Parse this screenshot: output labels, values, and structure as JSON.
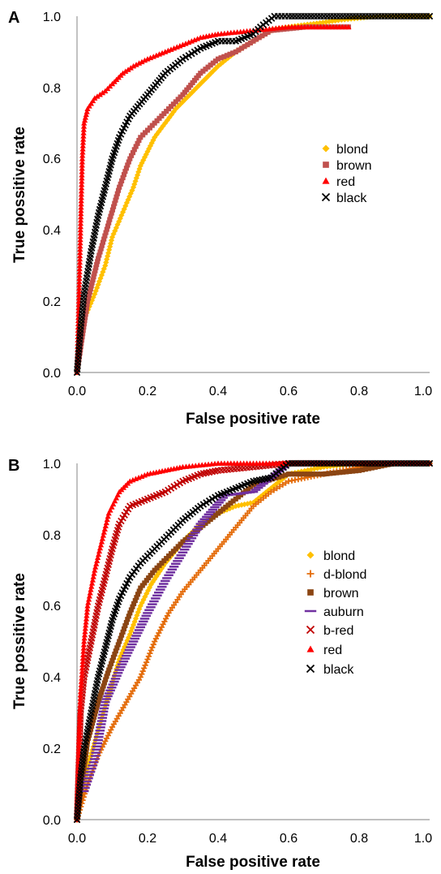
{
  "chart_data": [
    {
      "panel_label": "A",
      "type": "scatter",
      "xlabel": "False positive rate",
      "ylabel": "True possitive rate",
      "xlim": [
        0,
        1
      ],
      "ylim": [
        0,
        1
      ],
      "xticks": [
        "0.0",
        "0.2",
        "0.4",
        "0.6",
        "0.8",
        "1.0"
      ],
      "yticks": [
        "0.0",
        "0.2",
        "0.4",
        "0.6",
        "0.8",
        "1.0"
      ],
      "grid": false,
      "legend_position": "right-middle",
      "series": [
        {
          "name": "blond",
          "color": "#FFC000",
          "marker": "diamond",
          "x": [
            0,
            0.02,
            0.05,
            0.08,
            0.1,
            0.13,
            0.16,
            0.18,
            0.2,
            0.22,
            0.25,
            0.28,
            0.32,
            0.36,
            0.4,
            0.45,
            0.5,
            0.55,
            0.6,
            0.68,
            0.75,
            0.85,
            1.0
          ],
          "y": [
            0,
            0.15,
            0.22,
            0.3,
            0.38,
            0.45,
            0.52,
            0.58,
            0.62,
            0.66,
            0.7,
            0.74,
            0.78,
            0.82,
            0.86,
            0.9,
            0.93,
            0.96,
            0.97,
            0.98,
            0.99,
            1.0,
            1.0
          ]
        },
        {
          "name": "brown",
          "color": "#C0504D",
          "marker": "square",
          "x": [
            0,
            0.03,
            0.06,
            0.09,
            0.12,
            0.15,
            0.18,
            0.22,
            0.26,
            0.3,
            0.35,
            0.4,
            0.45,
            0.5,
            0.55,
            0.65,
            0.77
          ],
          "y": [
            0,
            0.2,
            0.32,
            0.42,
            0.52,
            0.6,
            0.66,
            0.7,
            0.74,
            0.78,
            0.84,
            0.88,
            0.9,
            0.93,
            0.96,
            0.97,
            0.97
          ]
        },
        {
          "name": "red",
          "color": "#FF0000",
          "marker": "triangle",
          "x": [
            0,
            0.005,
            0.01,
            0.015,
            0.02,
            0.03,
            0.05,
            0.08,
            0.1,
            0.13,
            0.16,
            0.2,
            0.25,
            0.3,
            0.35,
            0.4,
            0.5,
            0.6,
            0.7,
            0.77
          ],
          "y": [
            0,
            0.2,
            0.4,
            0.6,
            0.7,
            0.74,
            0.77,
            0.79,
            0.81,
            0.84,
            0.86,
            0.88,
            0.9,
            0.92,
            0.94,
            0.95,
            0.96,
            0.97,
            0.97,
            0.97
          ]
        },
        {
          "name": "black",
          "color": "#000000",
          "marker": "x",
          "x": [
            0,
            0.01,
            0.02,
            0.04,
            0.06,
            0.08,
            0.1,
            0.12,
            0.15,
            0.2,
            0.25,
            0.3,
            0.35,
            0.4,
            0.45,
            0.5,
            0.52,
            0.56,
            0.6,
            0.7,
            0.8,
            0.9,
            1.0
          ],
          "y": [
            0,
            0.12,
            0.22,
            0.34,
            0.44,
            0.52,
            0.6,
            0.66,
            0.72,
            0.78,
            0.84,
            0.88,
            0.91,
            0.93,
            0.93,
            0.95,
            0.97,
            1.0,
            1.0,
            1.0,
            1.0,
            1.0,
            1.0
          ]
        }
      ]
    },
    {
      "panel_label": "B",
      "type": "scatter",
      "xlabel": "False positive rate",
      "ylabel": "True possitive rate",
      "xlim": [
        0,
        1
      ],
      "ylim": [
        0,
        1
      ],
      "xticks": [
        "0.0",
        "0.2",
        "0.4",
        "0.6",
        "0.8",
        "1.0"
      ],
      "yticks": [
        "0.0",
        "0.2",
        "0.4",
        "0.6",
        "0.8",
        "1.0"
      ],
      "grid": false,
      "legend_position": "right-middle",
      "series": [
        {
          "name": "blond",
          "color": "#FFC000",
          "marker": "diamond",
          "x": [
            0,
            0.03,
            0.06,
            0.09,
            0.12,
            0.15,
            0.18,
            0.21,
            0.25,
            0.3,
            0.35,
            0.4,
            0.45,
            0.5,
            0.55,
            0.6,
            0.7,
            0.8,
            0.85,
            1.0
          ],
          "y": [
            0,
            0.15,
            0.25,
            0.35,
            0.45,
            0.52,
            0.6,
            0.66,
            0.72,
            0.78,
            0.83,
            0.86,
            0.88,
            0.89,
            0.93,
            0.97,
            0.99,
            1.0,
            1.0,
            1.0
          ]
        },
        {
          "name": "d-blond",
          "color": "#E46C0A",
          "marker": "plus",
          "x": [
            0,
            0.03,
            0.06,
            0.1,
            0.14,
            0.18,
            0.22,
            0.26,
            0.3,
            0.35,
            0.4,
            0.45,
            0.5,
            0.55,
            0.6,
            0.7,
            0.8,
            0.9,
            1.0
          ],
          "y": [
            0,
            0.1,
            0.18,
            0.26,
            0.33,
            0.4,
            0.5,
            0.58,
            0.64,
            0.7,
            0.76,
            0.82,
            0.88,
            0.92,
            0.95,
            0.97,
            0.99,
            1.0,
            1.0
          ]
        },
        {
          "name": "brown",
          "color": "#8B4513",
          "marker": "square",
          "x": [
            0,
            0.03,
            0.06,
            0.09,
            0.12,
            0.15,
            0.18,
            0.22,
            0.26,
            0.3,
            0.35,
            0.4,
            0.45,
            0.5,
            0.6,
            0.7,
            0.8,
            0.9,
            1.0
          ],
          "y": [
            0,
            0.22,
            0.33,
            0.42,
            0.5,
            0.58,
            0.65,
            0.7,
            0.74,
            0.78,
            0.82,
            0.86,
            0.9,
            0.94,
            0.97,
            0.97,
            0.98,
            1.0,
            1.0
          ]
        },
        {
          "name": "auburn",
          "color": "#7030A0",
          "marker": "dash",
          "x": [
            0.02,
            0.05,
            0.08,
            0.12,
            0.16,
            0.2,
            0.25,
            0.3,
            0.35,
            0.42,
            0.5,
            0.6,
            0.7
          ],
          "y": [
            0.08,
            0.17,
            0.33,
            0.42,
            0.5,
            0.58,
            0.67,
            0.75,
            0.83,
            0.91,
            0.92,
            1.0,
            1.0
          ]
        },
        {
          "name": "b-red",
          "color": "#C00000",
          "marker": "x",
          "x": [
            0,
            0.01,
            0.02,
            0.04,
            0.06,
            0.08,
            0.1,
            0.12,
            0.15,
            0.2,
            0.25,
            0.3,
            0.35,
            0.4,
            0.5,
            0.6,
            0.7
          ],
          "y": [
            0,
            0.3,
            0.4,
            0.5,
            0.6,
            0.68,
            0.76,
            0.83,
            0.88,
            0.9,
            0.92,
            0.95,
            0.97,
            0.98,
            0.99,
            1.0,
            1.0
          ]
        },
        {
          "name": "red",
          "color": "#FF0000",
          "marker": "triangle",
          "x": [
            0,
            0.005,
            0.01,
            0.02,
            0.03,
            0.05,
            0.07,
            0.09,
            0.12,
            0.15,
            0.2,
            0.25,
            0.3,
            0.4,
            0.5,
            0.6,
            0.8,
            1.0
          ],
          "y": [
            0,
            0.2,
            0.35,
            0.5,
            0.6,
            0.7,
            0.78,
            0.86,
            0.92,
            0.95,
            0.97,
            0.98,
            0.99,
            1.0,
            1.0,
            1.0,
            1.0,
            1.0
          ]
        },
        {
          "name": "black",
          "color": "#000000",
          "marker": "x",
          "x": [
            0,
            0.01,
            0.02,
            0.04,
            0.06,
            0.08,
            0.1,
            0.12,
            0.15,
            0.18,
            0.22,
            0.26,
            0.3,
            0.35,
            0.4,
            0.45,
            0.5,
            0.55,
            0.6,
            0.7,
            0.8,
            0.9,
            1.0
          ],
          "y": [
            0,
            0.12,
            0.2,
            0.3,
            0.4,
            0.48,
            0.56,
            0.62,
            0.68,
            0.72,
            0.76,
            0.8,
            0.84,
            0.88,
            0.91,
            0.93,
            0.95,
            0.96,
            1.0,
            1.0,
            1.0,
            1.0,
            1.0
          ]
        }
      ]
    }
  ]
}
